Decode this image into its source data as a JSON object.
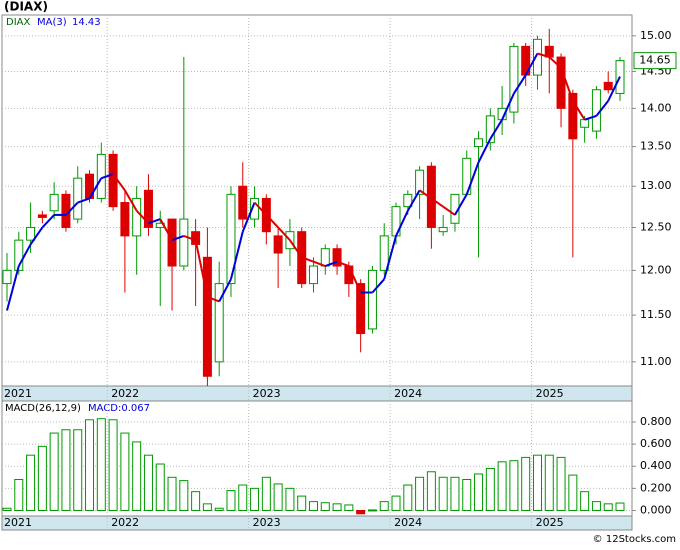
{
  "title": "(DIAX)",
  "watermark": "© 12Stocks.com",
  "chart_data": [
    {
      "type": "candlestick",
      "name": "DIAX",
      "categories": [
        "2021",
        null,
        null,
        null,
        null,
        null,
        null,
        null,
        null,
        "2022",
        null,
        null,
        null,
        null,
        null,
        null,
        null,
        null,
        null,
        null,
        null,
        "2023",
        null,
        null,
        null,
        null,
        null,
        null,
        null,
        null,
        null,
        null,
        null,
        "2024",
        null,
        null,
        null,
        null,
        null,
        null,
        null,
        null,
        null,
        null,
        null,
        "2025",
        null,
        null,
        null,
        null,
        null,
        null,
        null
      ],
      "open": [
        11.85,
        12.0,
        12.35,
        12.65,
        12.7,
        12.9,
        12.6,
        13.15,
        12.85,
        13.4,
        12.8,
        12.4,
        12.95,
        12.5,
        12.6,
        12.05,
        12.45,
        12.15,
        11.0,
        11.85,
        13.0,
        12.6,
        12.85,
        12.4,
        12.25,
        12.45,
        11.85,
        12.05,
        12.25,
        12.05,
        11.85,
        11.35,
        12.0,
        12.4,
        12.75,
        12.9,
        13.25,
        12.45,
        12.55,
        12.9,
        13.5,
        13.55,
        13.85,
        13.95,
        14.85,
        14.45,
        14.85,
        14.7,
        14.2,
        13.75,
        13.7,
        14.35,
        14.2
      ],
      "high": [
        12.2,
        12.45,
        12.8,
        12.7,
        13.05,
        12.95,
        13.25,
        13.2,
        13.55,
        13.45,
        12.95,
        13.0,
        13.15,
        12.7,
        12.6,
        14.7,
        12.6,
        12.5,
        12.1,
        13.0,
        13.3,
        13.0,
        12.9,
        12.5,
        12.6,
        12.5,
        12.15,
        12.3,
        12.3,
        12.1,
        11.9,
        12.05,
        12.55,
        12.8,
        12.95,
        13.25,
        13.3,
        12.65,
        12.9,
        13.45,
        13.7,
        14.0,
        14.3,
        14.9,
        14.9,
        15.0,
        15.1,
        14.75,
        14.25,
        13.9,
        14.3,
        14.5,
        14.7
      ],
      "low": [
        11.65,
        11.95,
        12.2,
        12.55,
        12.6,
        12.45,
        12.55,
        12.8,
        12.8,
        12.7,
        11.75,
        11.95,
        12.4,
        11.6,
        11.55,
        12.0,
        11.6,
        10.75,
        10.85,
        11.7,
        12.5,
        12.5,
        12.3,
        11.8,
        12.05,
        11.8,
        11.75,
        11.95,
        11.95,
        11.7,
        11.1,
        11.3,
        11.95,
        12.3,
        12.65,
        12.6,
        12.25,
        12.4,
        12.45,
        12.9,
        12.15,
        13.45,
        13.65,
        13.8,
        14.3,
        14.25,
        14.2,
        13.75,
        12.15,
        13.55,
        13.6,
        14.2,
        14.1
      ],
      "close": [
        12.0,
        12.35,
        12.5,
        12.62,
        12.9,
        12.5,
        13.1,
        12.85,
        13.4,
        12.75,
        12.4,
        12.85,
        12.5,
        12.55,
        12.05,
        12.6,
        12.3,
        10.85,
        11.85,
        12.9,
        12.6,
        12.85,
        12.45,
        12.2,
        12.45,
        11.85,
        12.05,
        12.25,
        12.05,
        11.85,
        11.3,
        12.0,
        12.4,
        12.75,
        12.9,
        13.2,
        12.5,
        12.5,
        12.9,
        13.35,
        13.6,
        13.9,
        14.0,
        14.85,
        14.45,
        14.95,
        14.7,
        14.0,
        13.6,
        13.85,
        14.25,
        14.25,
        14.65
      ],
      "up_color": "#009900",
      "down_color": "#dd0000",
      "ma": {
        "name": "MA(3)",
        "up_color": "#0000dd",
        "down_color": "#dd0000",
        "values": [
          11.55,
          12.05,
          12.3,
          12.5,
          12.65,
          12.65,
          12.8,
          12.85,
          13.1,
          13.15,
          12.95,
          12.7,
          12.55,
          12.6,
          12.35,
          12.4,
          12.35,
          11.7,
          11.65,
          11.9,
          12.45,
          12.8,
          12.65,
          12.5,
          12.35,
          12.15,
          12.1,
          12.05,
          12.1,
          12.05,
          11.75,
          11.75,
          11.9,
          12.4,
          12.7,
          12.95,
          12.85,
          12.75,
          12.65,
          12.9,
          13.3,
          13.6,
          13.85,
          14.2,
          14.45,
          14.75,
          14.7,
          14.55,
          14.1,
          13.85,
          13.9,
          14.1,
          14.43
        ]
      },
      "log_scale": true,
      "grid": true,
      "ylim": [
        10.75,
        15.3
      ],
      "yticks": [
        {
          "value": 11,
          "label": "11.00"
        },
        {
          "value": 11.5,
          "label": "11.50"
        },
        {
          "value": 12,
          "label": "12.00"
        },
        {
          "value": 12.5,
          "label": "12.50"
        },
        {
          "value": 13,
          "label": "13.00"
        },
        {
          "value": 13.5,
          "label": "13.50"
        },
        {
          "value": 14,
          "label": "14.00"
        },
        {
          "value": 14.5,
          "label": "14.50"
        },
        {
          "value": 15,
          "label": "15.00"
        }
      ]
    },
    {
      "type": "bar",
      "name": "MACD(26,12,9)",
      "current_label": "MACD:0.067",
      "values": [
        0.02,
        0.28,
        0.5,
        0.58,
        0.7,
        0.73,
        0.73,
        0.82,
        0.83,
        0.82,
        0.7,
        0.62,
        0.5,
        0.42,
        0.3,
        0.27,
        0.17,
        0.06,
        0.02,
        0.18,
        0.23,
        0.2,
        0.3,
        0.24,
        0.2,
        0.13,
        0.08,
        0.07,
        0.06,
        0.05,
        -0.03,
        0.005,
        0.08,
        0.13,
        0.23,
        0.3,
        0.35,
        0.3,
        0.3,
        0.28,
        0.33,
        0.38,
        0.44,
        0.45,
        0.48,
        0.5,
        0.5,
        0.48,
        0.32,
        0.17,
        0.08,
        0.06,
        0.067
      ],
      "up_color": "#009900",
      "down_color": "#dd0000",
      "grid": true,
      "ylim": [
        -0.05,
        0.99
      ],
      "yticks": [
        {
          "value": 0,
          "label": "0.000"
        },
        {
          "value": 0.2,
          "label": "0.200"
        },
        {
          "value": 0.4,
          "label": "0.400"
        },
        {
          "value": 0.6,
          "label": "0.600"
        },
        {
          "value": 0.8,
          "label": "0.800"
        }
      ]
    }
  ]
}
